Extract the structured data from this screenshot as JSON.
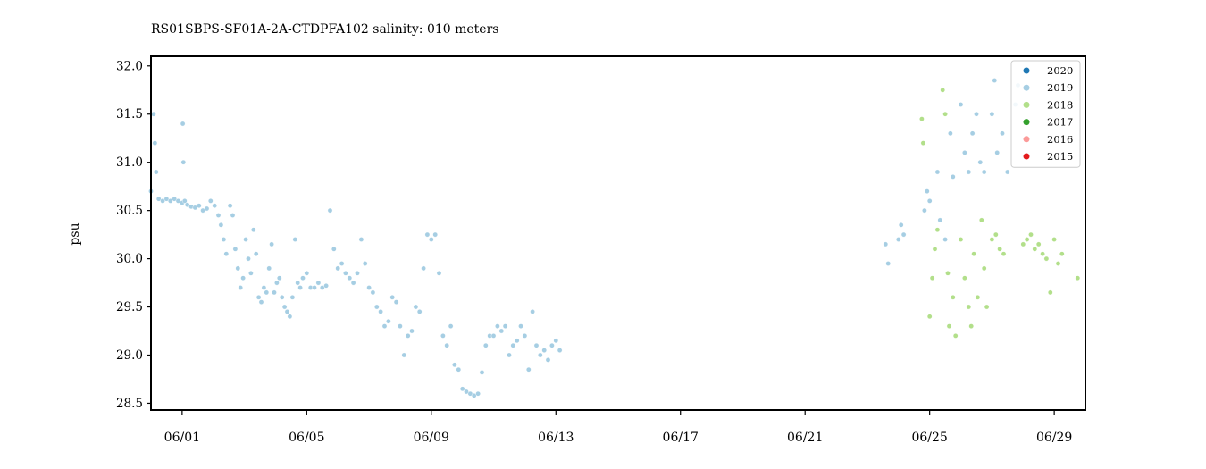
{
  "chart_data": {
    "type": "scatter",
    "title": "RS01SBPS-SF01A-2A-CTDPFA102 salinity: 010 meters",
    "xlabel": "",
    "ylabel": "psu",
    "xlim": [
      "2020-05-31T00:00",
      "2020-06-30T00:00"
    ],
    "ylim": [
      28.43,
      32.1
    ],
    "xticks": [
      {
        "label": "06/01",
        "date": "2020-06-01"
      },
      {
        "label": "06/05",
        "date": "2020-06-05"
      },
      {
        "label": "06/09",
        "date": "2020-06-09"
      },
      {
        "label": "06/13",
        "date": "2020-06-13"
      },
      {
        "label": "06/17",
        "date": "2020-06-17"
      },
      {
        "label": "06/21",
        "date": "2020-06-21"
      },
      {
        "label": "06/25",
        "date": "2020-06-25"
      },
      {
        "label": "06/29",
        "date": "2020-06-29"
      }
    ],
    "yticks": [
      28.5,
      29.0,
      29.5,
      30.0,
      30.5,
      31.0,
      31.5,
      32.0
    ],
    "grid": false,
    "legend_position": "top-right",
    "series": [
      {
        "name": "2020",
        "color": "#1f78b4",
        "points": []
      },
      {
        "name": "2019",
        "color": "#a6cee3",
        "points": [
          [
            "2020-05-31T00:00",
            30.7
          ],
          [
            "2020-05-31T02:00",
            31.5
          ],
          [
            "2020-05-31T03:00",
            31.2
          ],
          [
            "2020-05-31T04:00",
            30.9
          ],
          [
            "2020-05-31T06:00",
            30.62
          ],
          [
            "2020-05-31T09:00",
            30.6
          ],
          [
            "2020-05-31T12:00",
            30.62
          ],
          [
            "2020-05-31T15:00",
            30.6
          ],
          [
            "2020-05-31T18:00",
            30.62
          ],
          [
            "2020-05-31T21:00",
            30.6
          ],
          [
            "2020-06-01T00:00",
            30.58
          ],
          [
            "2020-06-01T00:30",
            31.4
          ],
          [
            "2020-06-01T01:00",
            31.0
          ],
          [
            "2020-06-01T02:00",
            30.6
          ],
          [
            "2020-06-01T04:00",
            30.56
          ],
          [
            "2020-06-01T07:00",
            30.54
          ],
          [
            "2020-06-01T10:00",
            30.53
          ],
          [
            "2020-06-01T13:00",
            30.55
          ],
          [
            "2020-06-01T16:00",
            30.5
          ],
          [
            "2020-06-01T19:00",
            30.52
          ],
          [
            "2020-06-01T22:00",
            30.6
          ],
          [
            "2020-06-02T01:00",
            30.55
          ],
          [
            "2020-06-02T04:00",
            30.45
          ],
          [
            "2020-06-02T06:00",
            30.35
          ],
          [
            "2020-06-02T08:00",
            30.2
          ],
          [
            "2020-06-02T10:00",
            30.05
          ],
          [
            "2020-06-02T13:00",
            30.55
          ],
          [
            "2020-06-02T15:00",
            30.45
          ],
          [
            "2020-06-02T17:00",
            30.1
          ],
          [
            "2020-06-02T19:00",
            29.9
          ],
          [
            "2020-06-02T21:00",
            29.7
          ],
          [
            "2020-06-02T23:00",
            29.8
          ],
          [
            "2020-06-03T01:00",
            30.2
          ],
          [
            "2020-06-03T03:00",
            30.0
          ],
          [
            "2020-06-03T05:00",
            29.85
          ],
          [
            "2020-06-03T07:00",
            30.3
          ],
          [
            "2020-06-03T09:00",
            30.05
          ],
          [
            "2020-06-03T11:00",
            29.6
          ],
          [
            "2020-06-03T13:00",
            29.55
          ],
          [
            "2020-06-03T15:00",
            29.7
          ],
          [
            "2020-06-03T17:00",
            29.65
          ],
          [
            "2020-06-03T19:00",
            29.9
          ],
          [
            "2020-06-03T21:00",
            30.15
          ],
          [
            "2020-06-03T23:00",
            29.65
          ],
          [
            "2020-06-04T01:00",
            29.75
          ],
          [
            "2020-06-04T03:00",
            29.8
          ],
          [
            "2020-06-04T05:00",
            29.6
          ],
          [
            "2020-06-04T07:00",
            29.5
          ],
          [
            "2020-06-04T09:00",
            29.45
          ],
          [
            "2020-06-04T11:00",
            29.4
          ],
          [
            "2020-06-04T13:00",
            29.6
          ],
          [
            "2020-06-04T15:00",
            30.2
          ],
          [
            "2020-06-04T17:00",
            29.75
          ],
          [
            "2020-06-04T19:00",
            29.7
          ],
          [
            "2020-06-04T21:00",
            29.8
          ],
          [
            "2020-06-05T00:00",
            29.85
          ],
          [
            "2020-06-05T03:00",
            29.7
          ],
          [
            "2020-06-05T06:00",
            29.7
          ],
          [
            "2020-06-05T09:00",
            29.75
          ],
          [
            "2020-06-05T12:00",
            29.7
          ],
          [
            "2020-06-05T15:00",
            29.72
          ],
          [
            "2020-06-05T18:00",
            30.5
          ],
          [
            "2020-06-05T21:00",
            30.1
          ],
          [
            "2020-06-06T00:00",
            29.9
          ],
          [
            "2020-06-06T03:00",
            29.95
          ],
          [
            "2020-06-06T06:00",
            29.85
          ],
          [
            "2020-06-06T09:00",
            29.8
          ],
          [
            "2020-06-06T12:00",
            29.75
          ],
          [
            "2020-06-06T15:00",
            29.85
          ],
          [
            "2020-06-06T18:00",
            30.2
          ],
          [
            "2020-06-06T21:00",
            29.95
          ],
          [
            "2020-06-07T00:00",
            29.7
          ],
          [
            "2020-06-07T03:00",
            29.65
          ],
          [
            "2020-06-07T06:00",
            29.5
          ],
          [
            "2020-06-07T09:00",
            29.45
          ],
          [
            "2020-06-07T12:00",
            29.3
          ],
          [
            "2020-06-07T15:00",
            29.35
          ],
          [
            "2020-06-07T18:00",
            29.6
          ],
          [
            "2020-06-07T21:00",
            29.55
          ],
          [
            "2020-06-08T00:00",
            29.3
          ],
          [
            "2020-06-08T03:00",
            29.0
          ],
          [
            "2020-06-08T06:00",
            29.2
          ],
          [
            "2020-06-08T09:00",
            29.25
          ],
          [
            "2020-06-08T12:00",
            29.5
          ],
          [
            "2020-06-08T15:00",
            29.45
          ],
          [
            "2020-06-08T18:00",
            29.9
          ],
          [
            "2020-06-08T21:00",
            30.25
          ],
          [
            "2020-06-09T00:00",
            30.2
          ],
          [
            "2020-06-09T03:00",
            30.25
          ],
          [
            "2020-06-09T06:00",
            29.85
          ],
          [
            "2020-06-09T09:00",
            29.2
          ],
          [
            "2020-06-09T12:00",
            29.1
          ],
          [
            "2020-06-09T15:00",
            29.3
          ],
          [
            "2020-06-09T18:00",
            28.9
          ],
          [
            "2020-06-09T21:00",
            28.85
          ],
          [
            "2020-06-10T00:00",
            28.65
          ],
          [
            "2020-06-10T03:00",
            28.62
          ],
          [
            "2020-06-10T06:00",
            28.6
          ],
          [
            "2020-06-10T09:00",
            28.58
          ],
          [
            "2020-06-10T12:00",
            28.6
          ],
          [
            "2020-06-10T15:00",
            28.82
          ],
          [
            "2020-06-10T18:00",
            29.1
          ],
          [
            "2020-06-10T21:00",
            29.2
          ],
          [
            "2020-06-11T00:00",
            29.2
          ],
          [
            "2020-06-11T03:00",
            29.3
          ],
          [
            "2020-06-11T06:00",
            29.25
          ],
          [
            "2020-06-11T09:00",
            29.3
          ],
          [
            "2020-06-11T12:00",
            29.0
          ],
          [
            "2020-06-11T15:00",
            29.1
          ],
          [
            "2020-06-11T18:00",
            29.15
          ],
          [
            "2020-06-11T21:00",
            29.3
          ],
          [
            "2020-06-12T00:00",
            29.2
          ],
          [
            "2020-06-12T03:00",
            28.85
          ],
          [
            "2020-06-12T06:00",
            29.45
          ],
          [
            "2020-06-12T09:00",
            29.1
          ],
          [
            "2020-06-12T12:00",
            29.0
          ],
          [
            "2020-06-12T15:00",
            29.05
          ],
          [
            "2020-06-12T18:00",
            28.95
          ],
          [
            "2020-06-12T21:00",
            29.1
          ],
          [
            "2020-06-13T00:00",
            29.15
          ],
          [
            "2020-06-13T03:00",
            29.05
          ],
          [
            "2020-06-23T14:00",
            30.15
          ],
          [
            "2020-06-23T16:00",
            29.95
          ],
          [
            "2020-06-24T00:00",
            30.2
          ],
          [
            "2020-06-24T02:00",
            30.35
          ],
          [
            "2020-06-24T04:00",
            30.25
          ],
          [
            "2020-06-24T20:00",
            30.5
          ],
          [
            "2020-06-24T22:00",
            30.7
          ],
          [
            "2020-06-25T00:00",
            30.6
          ],
          [
            "2020-06-25T06:00",
            30.9
          ],
          [
            "2020-06-25T08:00",
            30.4
          ],
          [
            "2020-06-25T12:00",
            30.2
          ],
          [
            "2020-06-25T16:00",
            31.3
          ],
          [
            "2020-06-25T18:00",
            30.85
          ],
          [
            "2020-06-26T00:00",
            31.6
          ],
          [
            "2020-06-26T03:00",
            31.1
          ],
          [
            "2020-06-26T06:00",
            30.9
          ],
          [
            "2020-06-26T09:00",
            31.3
          ],
          [
            "2020-06-26T12:00",
            31.5
          ],
          [
            "2020-06-26T15:00",
            31.0
          ],
          [
            "2020-06-26T18:00",
            30.9
          ],
          [
            "2020-06-27T00:00",
            31.5
          ],
          [
            "2020-06-27T02:00",
            31.85
          ],
          [
            "2020-06-27T04:00",
            31.1
          ],
          [
            "2020-06-27T08:00",
            31.3
          ],
          [
            "2020-06-27T12:00",
            30.9
          ],
          [
            "2020-06-27T18:00",
            31.6
          ],
          [
            "2020-06-27T20:00",
            31.8
          ]
        ]
      },
      {
        "name": "2018",
        "color": "#b2df8a",
        "points": [
          [
            "2020-06-24T18:00",
            31.45
          ],
          [
            "2020-06-24T19:00",
            31.2
          ],
          [
            "2020-06-25T00:00",
            29.4
          ],
          [
            "2020-06-25T02:00",
            29.8
          ],
          [
            "2020-06-25T04:00",
            30.1
          ],
          [
            "2020-06-25T06:00",
            30.3
          ],
          [
            "2020-06-25T10:00",
            31.75
          ],
          [
            "2020-06-25T12:00",
            31.5
          ],
          [
            "2020-06-25T14:00",
            29.85
          ],
          [
            "2020-06-25T15:00",
            29.3
          ],
          [
            "2020-06-25T18:00",
            29.6
          ],
          [
            "2020-06-25T20:00",
            29.2
          ],
          [
            "2020-06-26T00:00",
            30.2
          ],
          [
            "2020-06-26T03:00",
            29.8
          ],
          [
            "2020-06-26T06:00",
            29.5
          ],
          [
            "2020-06-26T08:00",
            29.3
          ],
          [
            "2020-06-26T10:00",
            30.05
          ],
          [
            "2020-06-26T13:00",
            29.6
          ],
          [
            "2020-06-26T16:00",
            30.4
          ],
          [
            "2020-06-26T18:00",
            29.9
          ],
          [
            "2020-06-26T20:00",
            29.5
          ],
          [
            "2020-06-27T00:00",
            30.2
          ],
          [
            "2020-06-27T03:00",
            30.25
          ],
          [
            "2020-06-27T06:00",
            30.1
          ],
          [
            "2020-06-27T09:00",
            30.05
          ],
          [
            "2020-06-28T00:00",
            30.15
          ],
          [
            "2020-06-28T03:00",
            30.2
          ],
          [
            "2020-06-28T06:00",
            30.25
          ],
          [
            "2020-06-28T09:00",
            30.1
          ],
          [
            "2020-06-28T12:00",
            30.15
          ],
          [
            "2020-06-28T15:00",
            30.05
          ],
          [
            "2020-06-28T18:00",
            30.0
          ],
          [
            "2020-06-28T21:00",
            29.65
          ],
          [
            "2020-06-29T00:00",
            30.2
          ],
          [
            "2020-06-29T03:00",
            29.95
          ],
          [
            "2020-06-29T06:00",
            30.05
          ],
          [
            "2020-06-29T18:00",
            29.8
          ]
        ]
      },
      {
        "name": "2017",
        "color": "#33a02c",
        "points": []
      },
      {
        "name": "2016",
        "color": "#fb9a99",
        "points": []
      },
      {
        "name": "2015",
        "color": "#e31a1c",
        "points": []
      }
    ]
  }
}
